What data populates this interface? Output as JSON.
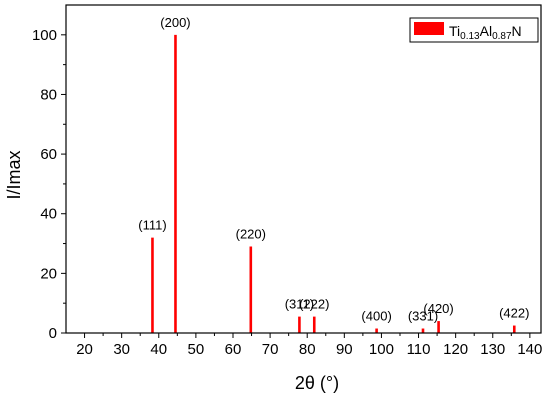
{
  "chart_data": {
    "type": "bar",
    "xlabel": "2θ (°)",
    "ylabel": "I/Imax",
    "xlim": [
      15,
      143
    ],
    "ylim": [
      0,
      110
    ],
    "xticks": [
      20,
      30,
      40,
      50,
      60,
      70,
      80,
      90,
      100,
      110,
      120,
      130,
      140
    ],
    "yticks": [
      0,
      20,
      40,
      60,
      80,
      100
    ],
    "grid": false,
    "legend_position": "top-right",
    "colors": {
      "bar": "#ff0000",
      "axis": "#000000"
    },
    "series": [
      {
        "name_parts": [
          {
            "text": "Ti",
            "sub": false
          },
          {
            "text": "0.13",
            "sub": true
          },
          {
            "text": "Al",
            "sub": false
          },
          {
            "text": "0.87",
            "sub": true
          },
          {
            "text": "N",
            "sub": false
          }
        ],
        "points": [
          {
            "x": 38.3,
            "y": 32,
            "label": "(111)"
          },
          {
            "x": 44.5,
            "y": 100,
            "label": "(200)"
          },
          {
            "x": 64.8,
            "y": 29,
            "label": "(220)"
          },
          {
            "x": 77.9,
            "y": 5.5,
            "label": "(311)"
          },
          {
            "x": 81.9,
            "y": 5.5,
            "label": "(222)"
          },
          {
            "x": 98.7,
            "y": 1.5,
            "label": "(400)"
          },
          {
            "x": 111.2,
            "y": 1.5,
            "label": "(331)"
          },
          {
            "x": 115.4,
            "y": 4,
            "label": "(420)"
          },
          {
            "x": 135.8,
            "y": 2.5,
            "label": "(422)"
          }
        ]
      }
    ]
  }
}
